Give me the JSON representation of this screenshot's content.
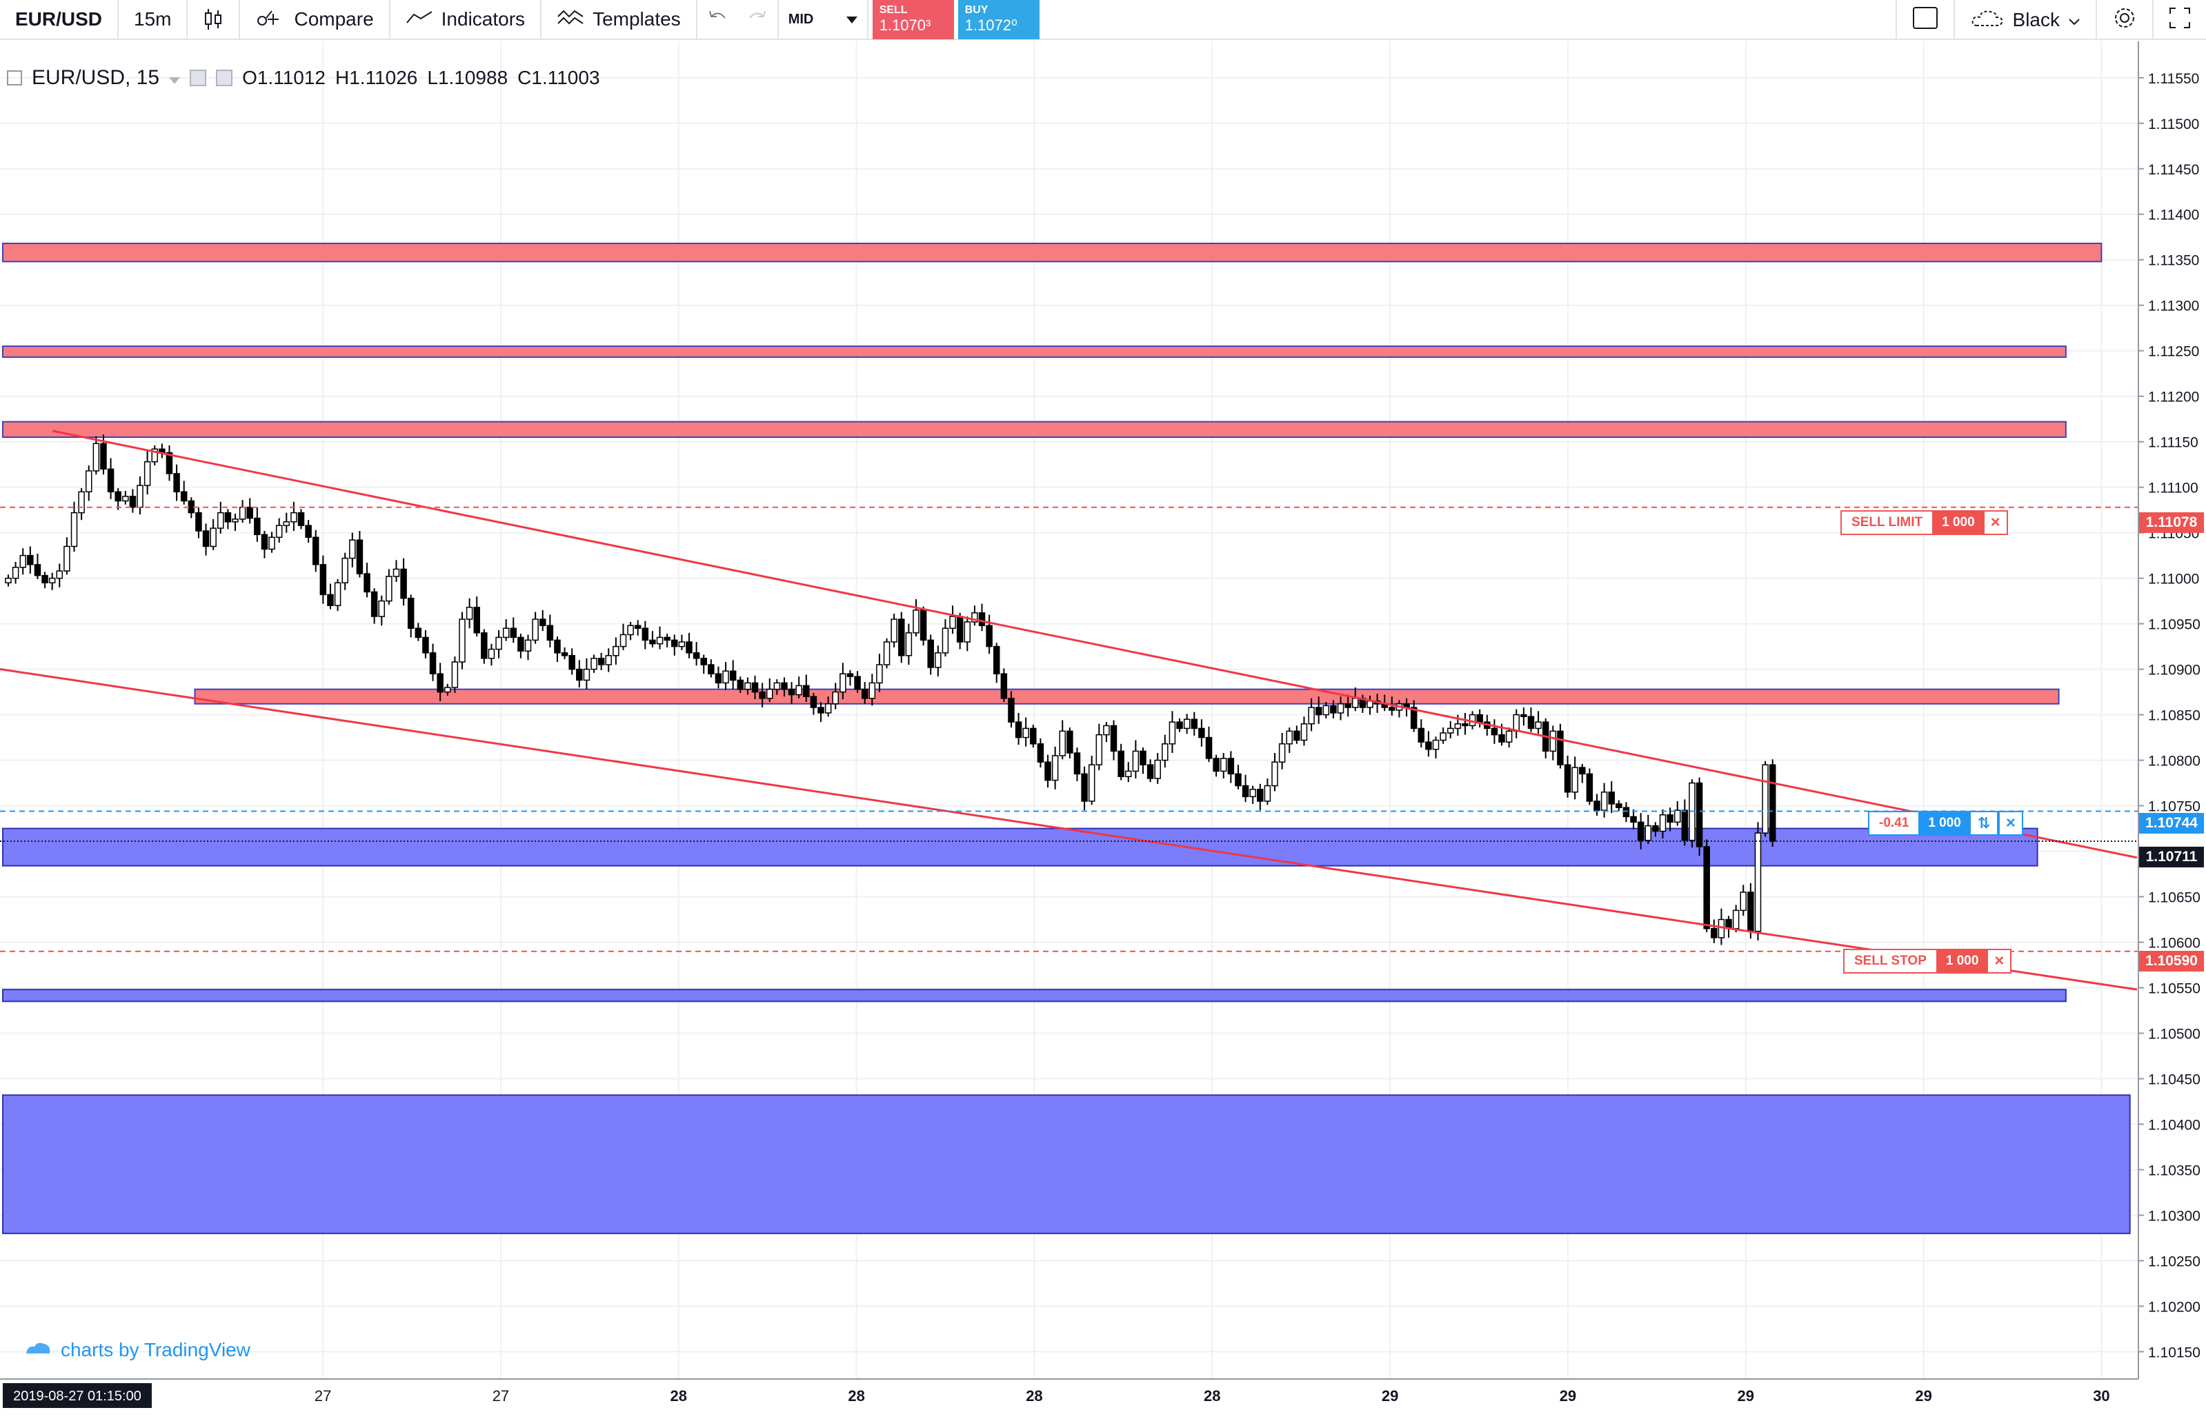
{
  "toolbar": {
    "symbol": "EUR/USD",
    "interval": "15m",
    "compare_label": "Compare",
    "indicators_label": "Indicators",
    "templates_label": "Templates",
    "price_type": "MID",
    "sell_label": "SELL",
    "sell_price": "1.1070³",
    "buy_label": "BUY",
    "buy_price": "1.1072⁰",
    "theme_label": "Black",
    "icons": [
      "candles-icon",
      "compare-icon",
      "indicators-icon",
      "templates-icon",
      "undo-icon",
      "redo-icon",
      "chevron-down-icon",
      "layout-icon",
      "cloud-icon",
      "gear-icon",
      "fullscreen-icon"
    ]
  },
  "legend": {
    "title": "EUR/USD, 15",
    "open_label": "O",
    "open": "1.11012",
    "high_label": "H",
    "high": "1.11026",
    "low_label": "L",
    "low": "1.10988",
    "close_label": "C",
    "close": "1.11003"
  },
  "watermark": "charts by TradingView",
  "orders": {
    "sell_limit": {
      "label": "SELL LIMIT",
      "qty": "1 000",
      "price": "1.11078"
    },
    "sell_stop": {
      "label": "SELL STOP",
      "qty": "1 000",
      "price": "1.10590"
    },
    "position": {
      "pnl": "-0.41",
      "qty": "1 000",
      "price": "1.10744"
    }
  },
  "last_price": "1.10711",
  "time_axis": {
    "cursor_label": "2019-08-27 01:15:00",
    "ticks": [
      "27",
      "27",
      "28",
      "28",
      "28",
      "28",
      "29",
      "29",
      "29",
      "29",
      "30"
    ]
  },
  "price_axis": {
    "ticks": [
      "1.11550",
      "1.11500",
      "1.11450",
      "1.11400",
      "1.11350",
      "1.11300",
      "1.11250",
      "1.11200",
      "1.11150",
      "1.11100",
      "1.11050",
      "1.11000",
      "1.10950",
      "1.10900",
      "1.10850",
      "1.10800",
      "1.10750",
      "1.10700",
      "1.10650",
      "1.10600",
      "1.10550",
      "1.10500",
      "1.10450",
      "1.10400",
      "1.10350",
      "1.10300",
      "1.10250",
      "1.10200",
      "1.10150"
    ]
  },
  "chart_data": {
    "type": "candlestick",
    "symbol": "EUR/USD",
    "interval": "15",
    "ylim": [
      1.1012,
      1.1159
    ],
    "zones": [
      {
        "kind": "resistance",
        "color": "#f77c80",
        "from": 1.11348,
        "to": 1.11368,
        "x_end": 2.95
      },
      {
        "kind": "resistance",
        "color": "#f77c80",
        "from": 1.11243,
        "to": 1.11255,
        "x_end": 2.9
      },
      {
        "kind": "resistance",
        "color": "#f77c80",
        "from": 1.11155,
        "to": 1.11172,
        "x_end": 2.9
      },
      {
        "kind": "resistance",
        "color": "#f77c80",
        "from": 1.10862,
        "to": 1.10878,
        "x_start": 0.27,
        "x_end": 2.89
      },
      {
        "kind": "support",
        "color": "#7b7dfa",
        "from": 1.10684,
        "to": 1.10725,
        "x_end": 2.86
      },
      {
        "kind": "support",
        "color": "#7b7dfa",
        "from": 1.10535,
        "to": 1.10548,
        "x_end": 2.9
      },
      {
        "kind": "support",
        "color": "#7b7dfa",
        "from": 1.1028,
        "to": 1.10432,
        "x_end": 2.99
      }
    ],
    "trendlines": [
      {
        "color": "#f23645",
        "x1": 0.07,
        "y1": 1.11162,
        "x2": 3.0,
        "y2": 1.10693
      },
      {
        "color": "#f23645",
        "x1": -0.02,
        "y1": 1.10902,
        "x2": 3.0,
        "y2": 1.10548
      }
    ],
    "order_lines": [
      {
        "kind": "sell_limit",
        "price": 1.11078,
        "color": "#ef5350"
      },
      {
        "kind": "sell_stop",
        "price": 1.1059,
        "color": "#ef5350"
      },
      {
        "kind": "position",
        "price": 1.10744,
        "color": "#2196f3"
      }
    ],
    "last_price_line": 1.10711,
    "x_ticks": [
      {
        "label": "27",
        "x": 0.45
      },
      {
        "label": "27",
        "x": 0.7
      },
      {
        "label": "28",
        "x": 0.95
      },
      {
        "label": "28",
        "x": 1.2
      },
      {
        "label": "28",
        "x": 1.45
      },
      {
        "label": "28",
        "x": 1.7
      },
      {
        "label": "29",
        "x": 1.95
      },
      {
        "label": "29",
        "x": 2.2
      },
      {
        "label": "29",
        "x": 2.45
      },
      {
        "label": "29",
        "x": 2.7
      },
      {
        "label": "30",
        "x": 2.95
      }
    ],
    "candle_count": 240,
    "x_range": [
      0.0,
      3.0
    ],
    "closes": [
      1.11,
      1.11012,
      1.11025,
      1.11015,
      1.11003,
      1.10995,
      1.11,
      1.11008,
      1.11035,
      1.11072,
      1.11095,
      1.11118,
      1.11148,
      1.1112,
      1.11095,
      1.11085,
      1.1109,
      1.11078,
      1.11102,
      1.11128,
      1.11142,
      1.11138,
      1.11115,
      1.11095,
      1.11085,
      1.11072,
      1.11052,
      1.11035,
      1.11055,
      1.11072,
      1.11062,
      1.11065,
      1.11078,
      1.11066,
      1.11048,
      1.11032,
      1.11045,
      1.11058,
      1.11062,
      1.11072,
      1.11058,
      1.11045,
      1.11015,
      1.10982,
      1.1097,
      1.10995,
      1.11022,
      1.11042,
      1.11005,
      1.10985,
      1.10958,
      1.10975,
      1.11002,
      1.1101,
      1.10978,
      1.10945,
      1.10935,
      1.10918,
      1.10895,
      1.10875,
      1.1088,
      1.10908,
      1.10955,
      1.10968,
      1.1094,
      1.10912,
      1.10922,
      1.10935,
      1.10945,
      1.10935,
      1.1092,
      1.10932,
      1.10955,
      1.10948,
      1.10932,
      1.10918,
      1.10915,
      1.109,
      1.10888,
      1.109,
      1.10912,
      1.10905,
      1.10915,
      1.10925,
      1.10938,
      1.10948,
      1.10945,
      1.10932,
      1.10928,
      1.10935,
      1.10932,
      1.10925,
      1.1093,
      1.10918,
      1.10912,
      1.10905,
      1.10895,
      1.10885,
      1.10898,
      1.10888,
      1.10878,
      1.10885,
      1.10875,
      1.10868,
      1.10878,
      1.10885,
      1.10878,
      1.10872,
      1.10882,
      1.1087,
      1.10858,
      1.10852,
      1.10862,
      1.10875,
      1.10895,
      1.10892,
      1.10878,
      1.10868,
      1.10885,
      1.10905,
      1.1093,
      1.10955,
      1.10915,
      1.1094,
      1.10965,
      1.10932,
      1.10902,
      1.10918,
      1.10945,
      1.10958,
      1.1093,
      1.10952,
      1.10962,
      1.10948,
      1.10925,
      1.10895,
      1.10868,
      1.10842,
      1.10825,
      1.10835,
      1.10818,
      1.10798,
      1.10778,
      1.10805,
      1.10832,
      1.10808,
      1.10785,
      1.10755,
      1.10795,
      1.10828,
      1.10838,
      1.1081,
      1.10782,
      1.10788,
      1.1081,
      1.10795,
      1.1078,
      1.108,
      1.10818,
      1.10842,
      1.10835,
      1.10845,
      1.10835,
      1.10825,
      1.10802,
      1.10788,
      1.10802,
      1.10785,
      1.10772,
      1.1076,
      1.10768,
      1.10755,
      1.10772,
      1.10798,
      1.10818,
      1.10832,
      1.10822,
      1.1084,
      1.10858,
      1.1085,
      1.1086,
      1.10852,
      1.10862,
      1.10858,
      1.10868,
      1.10858,
      1.10865,
      1.10862,
      1.10858,
      1.10855,
      1.10862,
      1.10858,
      1.10835,
      1.1082,
      1.10812,
      1.10822,
      1.1083,
      1.10835,
      1.1084,
      1.10838,
      1.1085,
      1.10842,
      1.10835,
      1.10828,
      1.1082,
      1.10832,
      1.1085,
      1.10848,
      1.10835,
      1.10842,
      1.1081,
      1.10832,
      1.10795,
      1.10765,
      1.10792,
      1.10785,
      1.10755,
      1.10745,
      1.10765,
      1.10752,
      1.10748,
      1.10738,
      1.10732,
      1.10712,
      1.10728,
      1.10722,
      1.1074,
      1.10732,
      1.10745,
      1.10712,
      1.10775,
      1.10705,
      1.10615,
      1.10605,
      1.10625,
      1.10615,
      1.10635,
      1.10655,
      1.10612,
      1.1072,
      1.10795,
      1.10711
    ]
  }
}
